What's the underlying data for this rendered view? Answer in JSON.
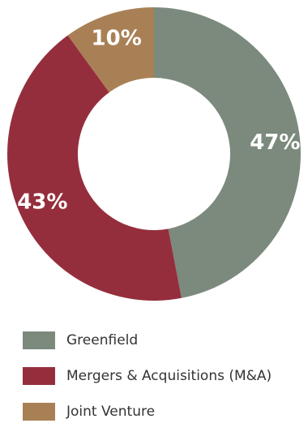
{
  "chart_data": {
    "type": "pie",
    "variant": "donut",
    "categories": [
      "Greenfield",
      "Mergers & Acquisitions (M&A)",
      "Joint Venture"
    ],
    "values": [
      47,
      43,
      10
    ],
    "labels": [
      "47%",
      "43%",
      "10%"
    ],
    "colors": [
      "#7b8a7d",
      "#952e3c",
      "#a98055"
    ],
    "legend_position": "bottom-left"
  }
}
